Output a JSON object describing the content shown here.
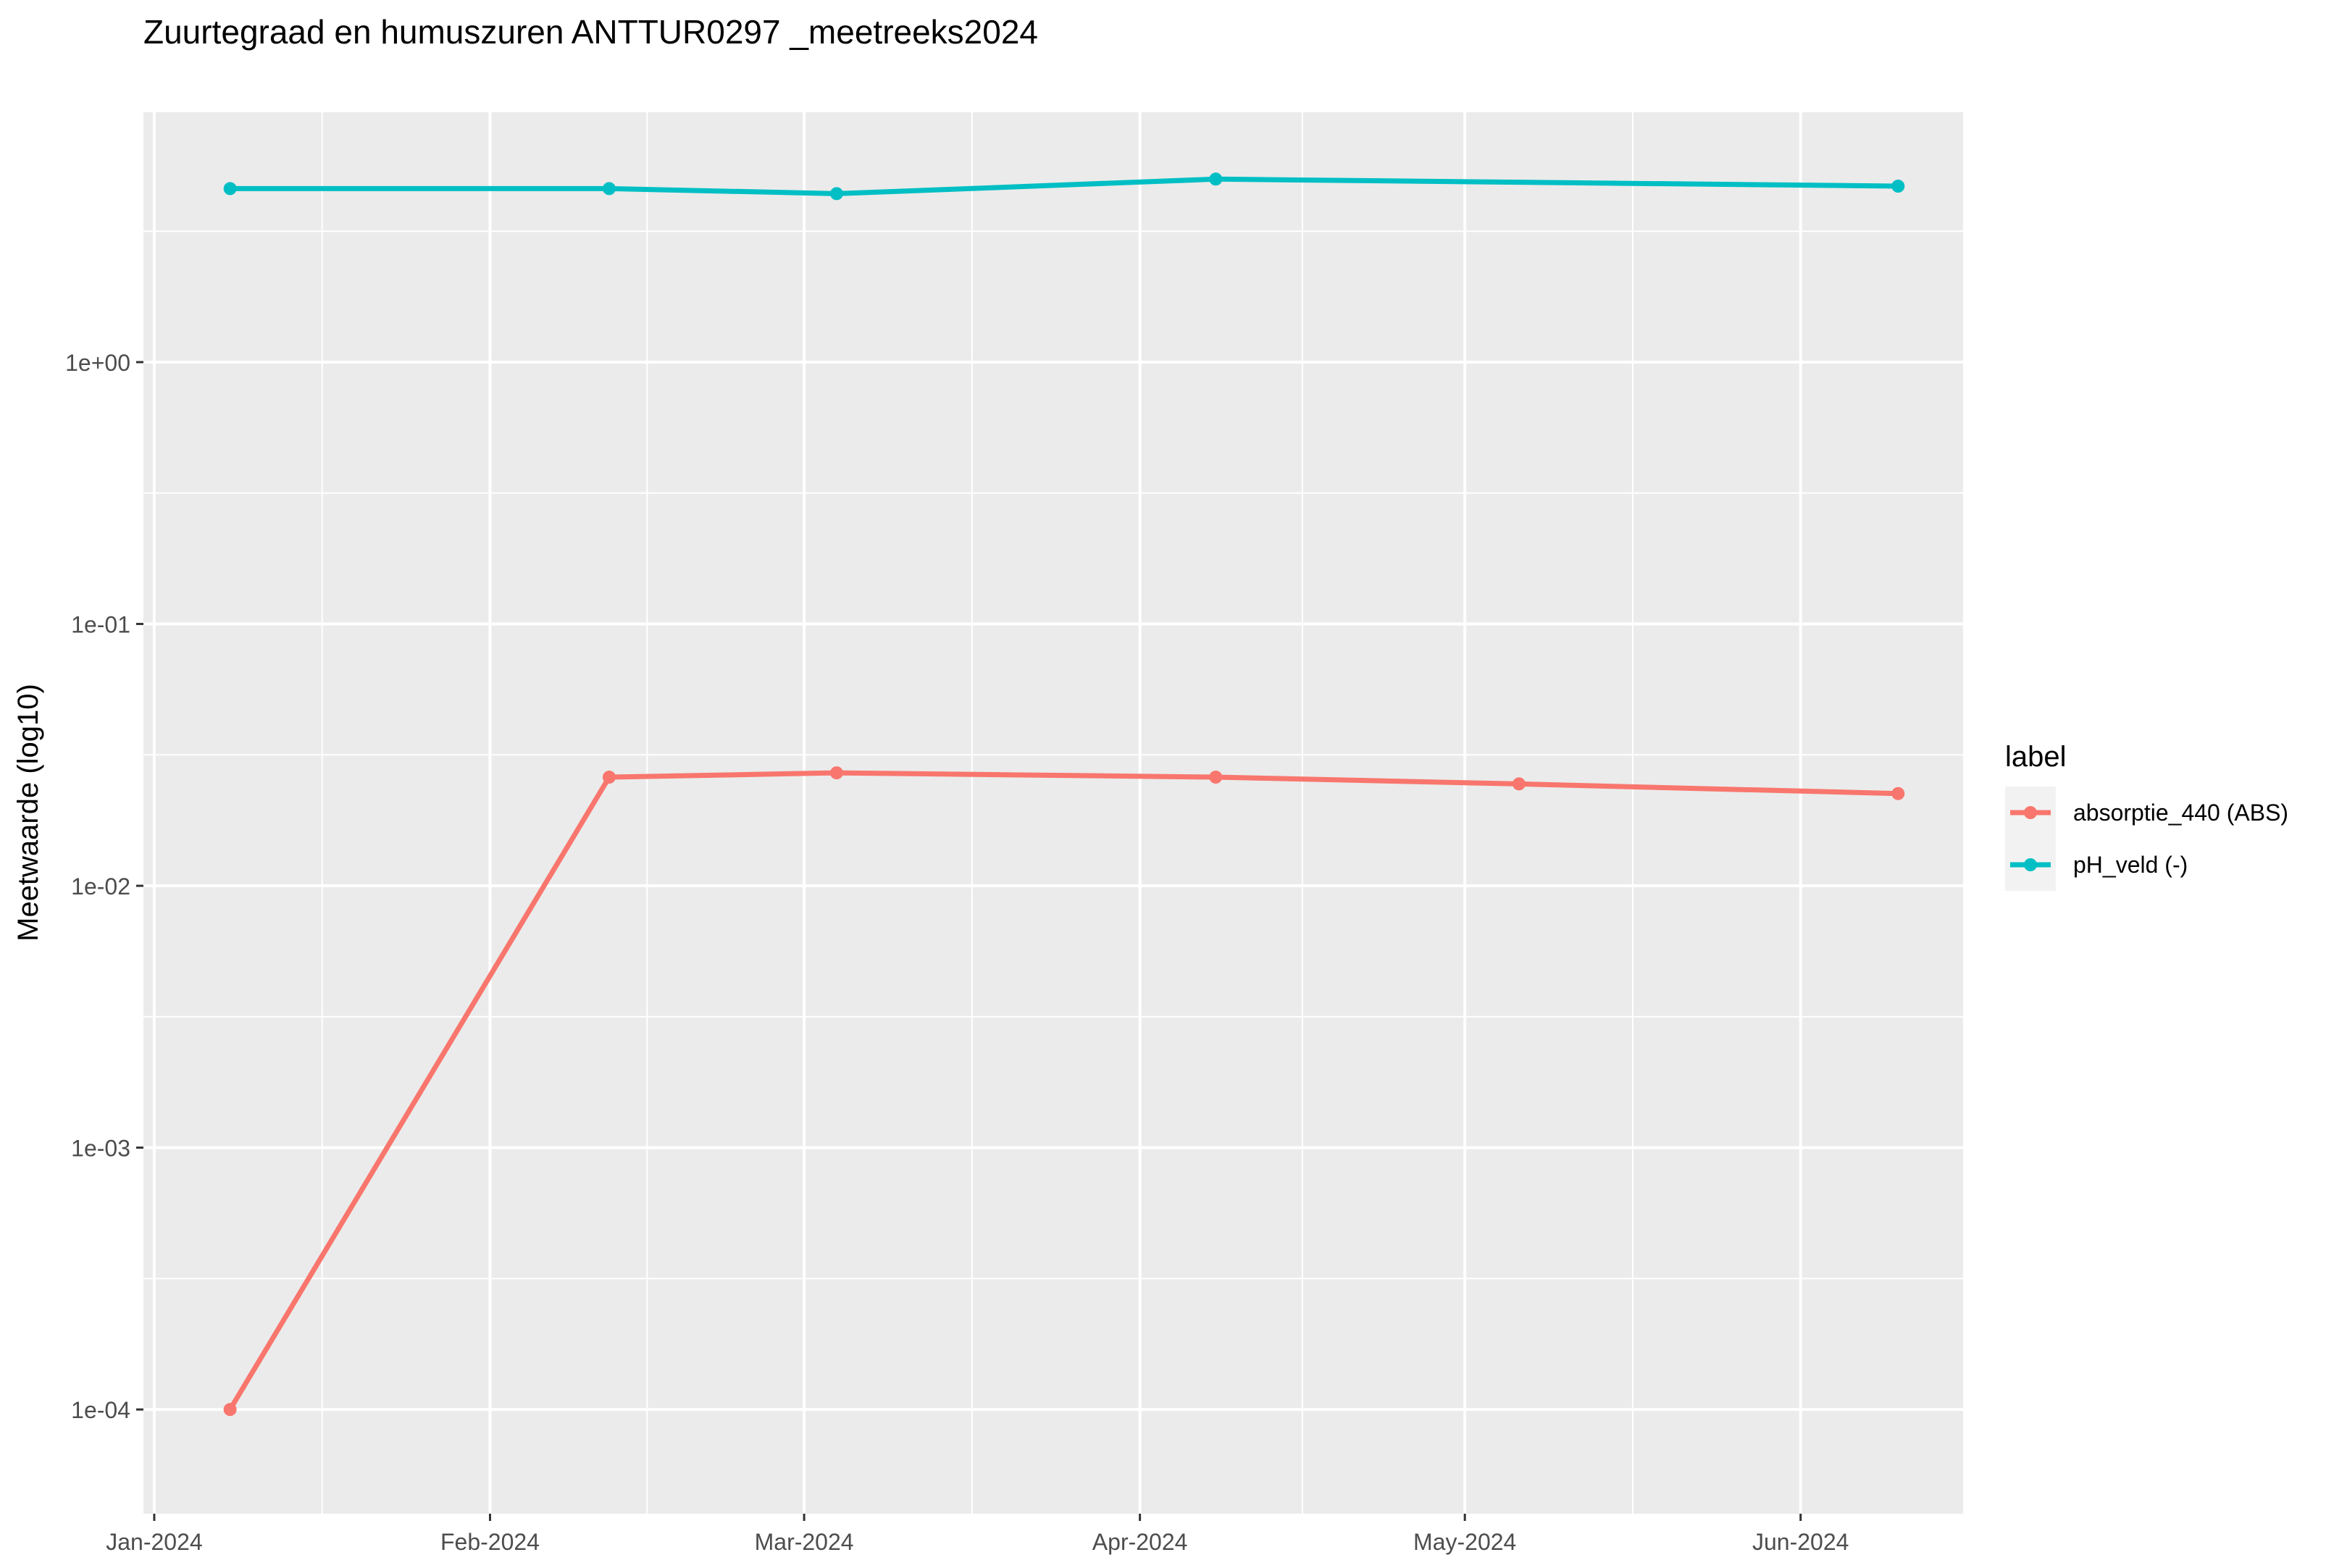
{
  "chart_data": {
    "type": "line",
    "title": "Zuurtegraad en humuszuren ANTTUR0297 _meetreeks2024",
    "xlabel": "",
    "ylabel": "Meetwaarde (log10)",
    "y_scale": "log10",
    "ylim": [
      4e-05,
      9
    ],
    "xlim": [
      "2023-12-31",
      "2024-06-16"
    ],
    "x_ticks": [
      {
        "date": "2024-01-01",
        "label": "Jan-2024"
      },
      {
        "date": "2024-02-01",
        "label": "Feb-2024"
      },
      {
        "date": "2024-03-01",
        "label": "Mar-2024"
      },
      {
        "date": "2024-04-01",
        "label": "Apr-2024"
      },
      {
        "date": "2024-05-01",
        "label": "May-2024"
      },
      {
        "date": "2024-06-01",
        "label": "Jun-2024"
      }
    ],
    "y_ticks": [
      {
        "value": 1,
        "label": "1e+00"
      },
      {
        "value": 0.1,
        "label": "1e-01"
      },
      {
        "value": 0.01,
        "label": "1e-02"
      },
      {
        "value": 0.001,
        "label": "1e-03"
      },
      {
        "value": 0.0001,
        "label": "1e-04"
      }
    ],
    "grid": true,
    "legend": {
      "title": "label",
      "position": "right"
    },
    "series": [
      {
        "name": "absorptie_440 (ABS)",
        "color": "#F8766D",
        "x": [
          "2024-01-08",
          "2024-02-12",
          "2024-03-04",
          "2024-04-08",
          "2024-05-06",
          "2024-06-10"
        ],
        "y": [
          0.0001,
          0.026,
          0.027,
          0.026,
          0.0245,
          0.0225
        ]
      },
      {
        "name": "pH_veld (-)",
        "color": "#00BFC4",
        "x": [
          "2024-01-08",
          "2024-02-12",
          "2024-03-04",
          "2024-04-08",
          "2024-06-10"
        ],
        "y": [
          4.6,
          4.6,
          4.4,
          5.0,
          4.7
        ]
      }
    ]
  }
}
